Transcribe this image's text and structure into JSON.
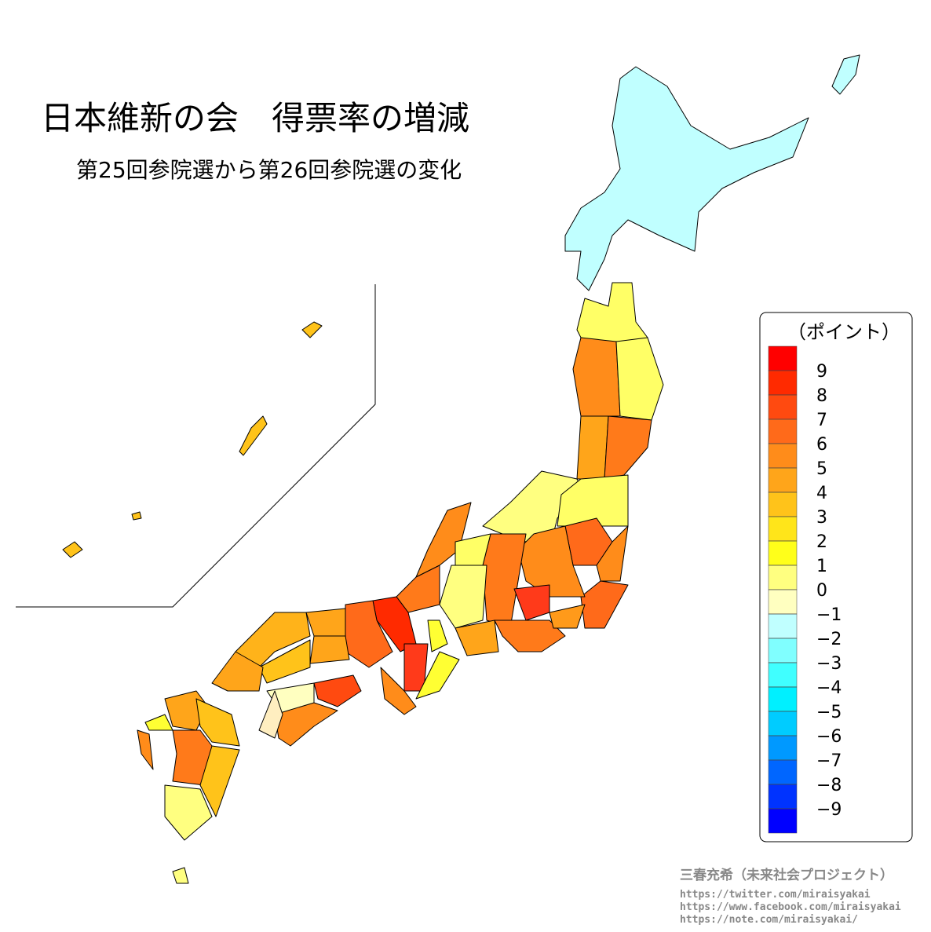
{
  "title": "日本維新の会　得票率の増減",
  "subtitle": "第25回参院選から第26回参院選の変化",
  "legend": {
    "title": "（ポイント）",
    "ticks": [
      9,
      8,
      7,
      6,
      5,
      4,
      3,
      2,
      1,
      0,
      {
        "value": -1,
        "label": "−1"
      },
      {
        "value": -2,
        "label": "−2"
      },
      {
        "value": -3,
        "label": "−3"
      },
      {
        "value": -4,
        "label": "−4"
      },
      {
        "value": -5,
        "label": "−5"
      },
      {
        "value": -6,
        "label": "−6"
      },
      {
        "value": -7,
        "label": "−7"
      },
      {
        "value": -8,
        "label": "−8"
      },
      {
        "value": -9,
        "label": "−9"
      }
    ],
    "colors": [
      "#ff0000",
      "#ff2a00",
      "#ff4a10",
      "#ff6a1a",
      "#ff8c1a",
      "#ffa51a",
      "#ffc31a",
      "#ffe51a",
      "#ffff1a",
      "#ffff80",
      "#ffffc0",
      "#c0ffff",
      "#80ffff",
      "#40ffff",
      "#00f0ff",
      "#00ccff",
      "#0099ff",
      "#0066ff",
      "#0033ff",
      "#0000ff"
    ]
  },
  "credits": {
    "author": "三春充希（未来社会プロジェクト）",
    "links": [
      "https://twitter.com/miraisyakai",
      "https://www.facebook.com/miraisyakai",
      "https://note.com/miraisyakai/"
    ]
  }
}
